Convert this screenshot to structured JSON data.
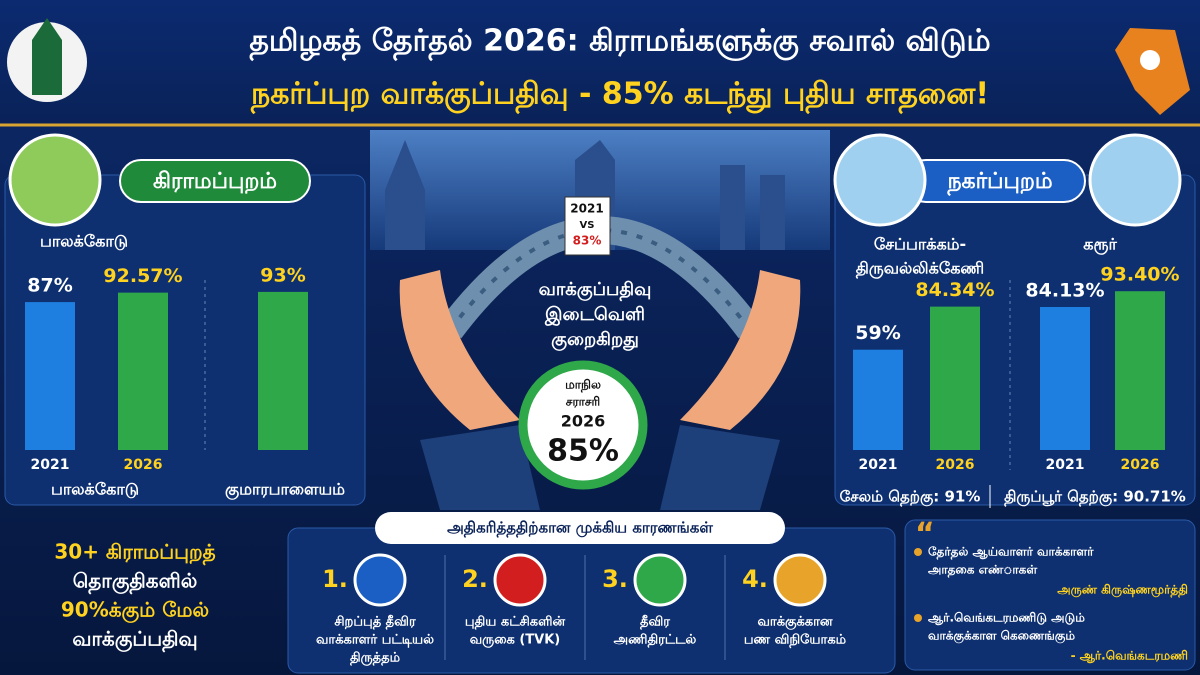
{
  "header": {
    "title_line1": "தமிழகத் தேர்தல் 2026: கிராமங்களுக்கு சவால் விடும்",
    "title_line2": "நகர்ப்புற வாக்குப்பதிவு - 85% கடந்து புதிய சாதனை!"
  },
  "rural": {
    "heading": "கிராமப்புறம்",
    "top_place": "பாலக்கோடு",
    "groups": [
      {
        "name": "பாலக்கோடு",
        "bars": [
          {
            "year": "2021",
            "value": 87,
            "label": "87%"
          },
          {
            "year": "2026",
            "value": 92.57,
            "label": "92.57%"
          }
        ]
      },
      {
        "name": "குமாரபாளையம்",
        "bars": [
          {
            "value": 93,
            "label": "93%"
          }
        ]
      }
    ],
    "note": [
      "30+ கிராமப்புறத்",
      "தொகுதிகளில்",
      "90%க்கும் மேல்",
      "வாக்குப்பதிவு"
    ]
  },
  "center": {
    "badge": [
      "2021",
      "VS",
      "83%"
    ],
    "gap_text": [
      "வாக்குப்பதிவு",
      "இடைவெளி",
      "குறைகிறது"
    ],
    "average": [
      "மாநில",
      "சராசரி",
      "2026",
      "85%"
    ]
  },
  "urban": {
    "heading": "நகர்ப்புறம்",
    "groups": [
      {
        "name": [
          "சேப்பாக்கம்-",
          "திருவல்லிக்கேணி"
        ],
        "bars": [
          {
            "year": "2021",
            "value": 59,
            "label": "59%"
          },
          {
            "year": "2026",
            "value": 84.34,
            "label": "84.34%"
          }
        ]
      },
      {
        "name": [
          "கரூர்"
        ],
        "bars": [
          {
            "year": "2021",
            "value": 84.13,
            "label": "84.13%"
          },
          {
            "year": "2026",
            "value": 93.4,
            "label": "93.40%"
          }
        ]
      }
    ],
    "footnotes": [
      "சேலம் தெற்கு: 91%",
      "திருப்பூர் தெற்கு: 90.71%"
    ]
  },
  "reasons": {
    "title": "அதிகரித்ததிற்கான முக்கிய காரணங்கள்",
    "items": [
      {
        "number": "1.",
        "lines": [
          "சிறப்புத் தீவிர",
          "வாக்காளர் பட்டியல்",
          "திருத்தம்"
        ]
      },
      {
        "number": "2.",
        "lines": [
          "புதிய கட்சிகளின்",
          "வருகை (TVK)"
        ]
      },
      {
        "number": "3.",
        "lines": [
          "தீவிர",
          "அணிதிரட்டல்"
        ]
      },
      {
        "number": "4.",
        "lines": [
          "வாக்குக்கான",
          "பண விநியோகம்"
        ]
      }
    ]
  },
  "quotes": {
    "mark": "“",
    "items": [
      {
        "lines": [
          "தேர்தல் ஆய்வாளர் வாக்காளர்",
          "அாதகை எண்ாகள்"
        ],
        "author": "அருண் கிருஷ்ணமூர்த்தி"
      },
      {
        "lines": [
          "ஆர்.வெங்கடரமணிடு அடும்",
          "வாக்குக்காள கெணைங்கும்"
        ],
        "author": "- ஆர்.வெங்கடரமணி"
      }
    ]
  }
}
